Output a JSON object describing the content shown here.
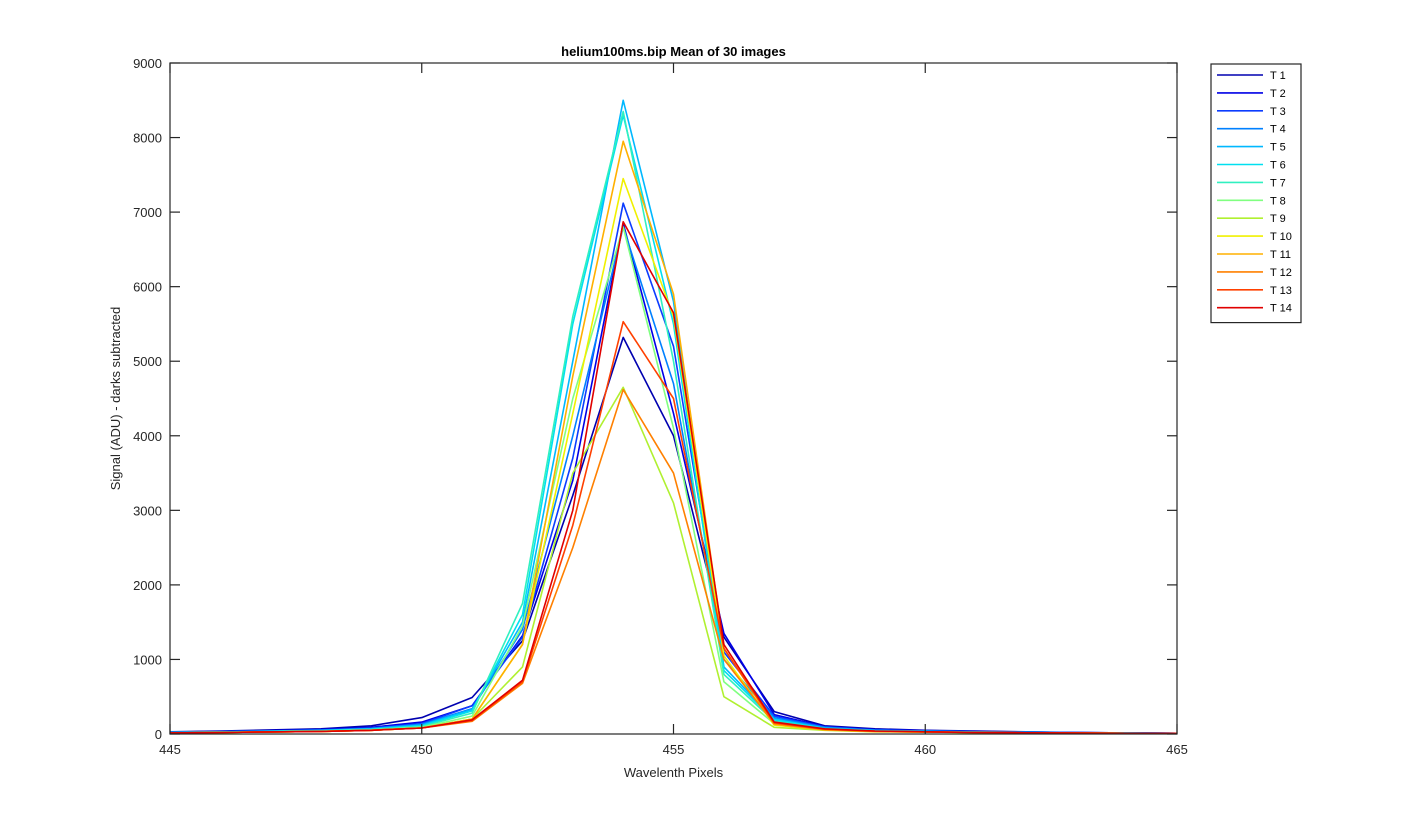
{
  "chart_data": {
    "type": "line",
    "title": "helium100ms.bip  Mean of 30 images",
    "xlabel": "Wavelenth Pixels",
    "ylabel": "Signal (ADU) - darks subtracted",
    "xlim": [
      445,
      465
    ],
    "ylim": [
      0,
      9000
    ],
    "xticks": [
      445,
      450,
      455,
      460,
      465
    ],
    "yticks": [
      0,
      1000,
      2000,
      3000,
      4000,
      5000,
      6000,
      7000,
      8000,
      9000
    ],
    "grid": false,
    "legend_position": "outside-top-right",
    "x": [
      445,
      446,
      447,
      448,
      449,
      450,
      451,
      452,
      453,
      454,
      455,
      456,
      457,
      458,
      459,
      460,
      461,
      462,
      463,
      464,
      465
    ],
    "series": [
      {
        "name": "T 1",
        "color": "#0000b0",
        "values": [
          30,
          40,
          55,
          70,
          110,
          220,
          490,
          1250,
          3200,
          5320,
          4000,
          1300,
          300,
          110,
          70,
          50,
          40,
          30,
          20,
          15,
          10
        ]
      },
      {
        "name": "T 2",
        "color": "#0000e6",
        "values": [
          25,
          35,
          45,
          60,
          90,
          160,
          380,
          1320,
          3400,
          6850,
          4300,
          1350,
          260,
          100,
          60,
          45,
          35,
          25,
          20,
          15,
          10
        ]
      },
      {
        "name": "T 3",
        "color": "#0c3cff",
        "values": [
          25,
          32,
          42,
          55,
          80,
          140,
          380,
          1300,
          3700,
          7120,
          5200,
          1100,
          240,
          95,
          55,
          40,
          30,
          25,
          20,
          15,
          10
        ]
      },
      {
        "name": "T 4",
        "color": "#0080ff",
        "values": [
          22,
          30,
          40,
          50,
          75,
          130,
          340,
          1400,
          4000,
          6800,
          4700,
          1000,
          220,
          90,
          50,
          40,
          30,
          22,
          18,
          14,
          10
        ]
      },
      {
        "name": "T 5",
        "color": "#00b8ff",
        "values": [
          20,
          28,
          38,
          48,
          70,
          120,
          330,
          1500,
          5000,
          8500,
          5800,
          900,
          200,
          80,
          45,
          35,
          28,
          20,
          15,
          12,
          10
        ]
      },
      {
        "name": "T 6",
        "color": "#00e0f0",
        "values": [
          20,
          26,
          35,
          45,
          65,
          110,
          310,
          1600,
          5500,
          8300,
          5500,
          850,
          190,
          75,
          45,
          35,
          26,
          20,
          15,
          12,
          10
        ]
      },
      {
        "name": "T 7",
        "color": "#30f0c0",
        "values": [
          18,
          25,
          33,
          42,
          60,
          100,
          280,
          1750,
          5600,
          8350,
          5000,
          800,
          170,
          70,
          40,
          30,
          24,
          18,
          14,
          11,
          8
        ]
      },
      {
        "name": "T 8",
        "color": "#80ff80",
        "values": [
          16,
          22,
          30,
          38,
          55,
          90,
          240,
          1450,
          4500,
          6800,
          4100,
          700,
          140,
          60,
          35,
          28,
          22,
          16,
          12,
          10,
          8
        ]
      },
      {
        "name": "T 9",
        "color": "#b0f030",
        "values": [
          15,
          20,
          28,
          35,
          50,
          80,
          200,
          900,
          3500,
          4650,
          3100,
          500,
          90,
          50,
          30,
          25,
          20,
          15,
          12,
          10,
          8
        ]
      },
      {
        "name": "T 10",
        "color": "#f0f000",
        "values": [
          15,
          20,
          28,
          35,
          50,
          80,
          200,
          1200,
          4300,
          7450,
          5600,
          1050,
          120,
          55,
          32,
          26,
          20,
          15,
          12,
          10,
          8
        ]
      },
      {
        "name": "T 11",
        "color": "#ffb000",
        "values": [
          15,
          20,
          28,
          35,
          50,
          80,
          200,
          1200,
          4800,
          7950,
          5900,
          1150,
          130,
          55,
          32,
          26,
          20,
          15,
          12,
          10,
          8
        ]
      },
      {
        "name": "T 12",
        "color": "#ff8000",
        "values": [
          15,
          20,
          28,
          35,
          50,
          80,
          170,
          680,
          2500,
          4620,
          3500,
          1000,
          140,
          60,
          35,
          28,
          20,
          15,
          12,
          10,
          8
        ]
      },
      {
        "name": "T 13",
        "color": "#ff4000",
        "values": [
          15,
          20,
          28,
          35,
          50,
          80,
          180,
          700,
          2800,
          5530,
          4500,
          1150,
          150,
          65,
          38,
          30,
          22,
          16,
          12,
          10,
          8
        ]
      },
      {
        "name": "T 14",
        "color": "#e00000",
        "values": [
          15,
          20,
          28,
          35,
          50,
          80,
          190,
          720,
          3000,
          6870,
          5650,
          1200,
          160,
          70,
          40,
          30,
          22,
          16,
          12,
          10,
          8
        ]
      }
    ]
  }
}
